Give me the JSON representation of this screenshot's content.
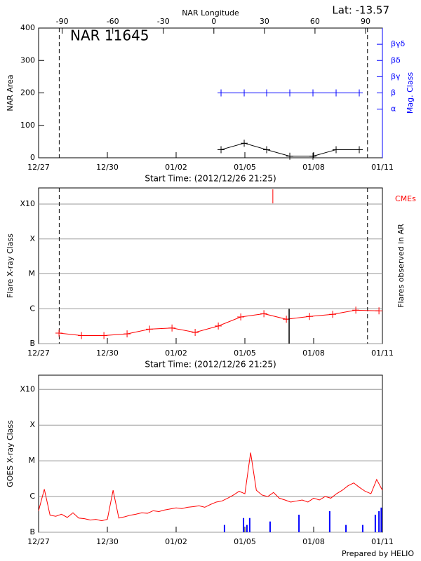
{
  "chart_data": [
    {
      "type": "line",
      "title": "NAR 11645",
      "annotation": "Lat: -13.57",
      "x_label": "Start Time: (2012/12/26 21:25)",
      "x2_label": "NAR Longitude",
      "y_label": "NAR Area",
      "y2_label": "Mag. Class",
      "y2_color": "#0000ff",
      "xlim": [
        0,
        15
      ],
      "xticks": [
        {
          "value": 0,
          "label": "12/27"
        },
        {
          "value": 3,
          "label": "12/30"
        },
        {
          "value": 6,
          "label": "01/02"
        },
        {
          "value": 9,
          "label": "01/05"
        },
        {
          "value": 12,
          "label": "01/08"
        },
        {
          "value": 15,
          "label": "01/11"
        }
      ],
      "x2lim": [
        -104,
        100
      ],
      "x2ticks": [
        -90,
        -60,
        -30,
        0,
        30,
        60,
        90
      ],
      "ylim": [
        0,
        400
      ],
      "yticks": [
        0,
        100,
        200,
        300,
        400
      ],
      "y2lim": [
        0,
        8
      ],
      "y2ticks": [
        {
          "value": 3,
          "label": "α"
        },
        {
          "value": 4,
          "label": "β"
        },
        {
          "value": 5,
          "label": "βγ"
        },
        {
          "value": 6,
          "label": "βδ"
        },
        {
          "value": 7,
          "label": "βγδ"
        }
      ],
      "grid": false,
      "limb_lines": [
        0.9,
        14.35
      ],
      "x": [
        7.96,
        8.97,
        9.95,
        10.96,
        11.97,
        12.98,
        13.99
      ],
      "series": [
        {
          "color": "#000000",
          "marker": "plus",
          "values": [
            25,
            45,
            25,
            5,
            5,
            25,
            25
          ]
        },
        {
          "color": "#0000ff",
          "marker": "plus",
          "axis": "y2",
          "values": [
            4,
            4,
            4,
            4,
            4,
            4,
            4
          ]
        }
      ]
    },
    {
      "type": "line",
      "x_label": "Start Time: (2012/12/26 21:25)",
      "y_label": "Flare X-ray Class",
      "y2_label": "Flares observed in AR",
      "y2_color": "#000000",
      "xlim": [
        0,
        15
      ],
      "xticks": [
        {
          "value": 0,
          "label": "12/27"
        },
        {
          "value": 3,
          "label": "12/30"
        },
        {
          "value": 6,
          "label": "01/02"
        },
        {
          "value": 9,
          "label": "01/05"
        },
        {
          "value": 12,
          "label": "01/08"
        },
        {
          "value": 15,
          "label": "01/11"
        }
      ],
      "log_y": true,
      "ylim": [
        1e-07,
        0.0029
      ],
      "yticks": [
        {
          "value": 1e-07,
          "label": "B"
        },
        {
          "value": 1e-06,
          "label": "C"
        },
        {
          "value": 1e-05,
          "label": "M"
        },
        {
          "value": 0.0001,
          "label": "X"
        },
        {
          "value": 0.001,
          "label": "X10"
        }
      ],
      "grid": true,
      "limb_lines": [
        0.9,
        14.35
      ],
      "x": [
        0.89,
        1.87,
        2.85,
        3.86,
        4.84,
        5.82,
        6.83,
        7.84,
        8.82,
        9.83,
        10.81,
        11.82,
        12.83,
        13.84,
        14.85
      ],
      "series": [
        {
          "color": "#ff0000",
          "marker": "plus",
          "values": [
            2e-07,
            1.7e-07,
            1.7e-07,
            1.9e-07,
            2.6e-07,
            2.8e-07,
            2.1e-07,
            3.2e-07,
            5.8e-07,
            7.2e-07,
            5e-07,
            6e-07,
            6.9e-07,
            9.1e-07,
            8.7e-07
          ]
        }
      ],
      "flares": {
        "color": "#000000",
        "x": [
          10.93
        ],
        "values": [
          1e-06
        ]
      },
      "cmes": {
        "color": "#ff0000",
        "label": "CMEs",
        "x": [
          10.22
        ]
      }
    },
    {
      "type": "line",
      "y_label": "GOES X-ray Class",
      "xlim": [
        0,
        15
      ],
      "xticks": [
        {
          "value": 0,
          "label": "12/27"
        },
        {
          "value": 3,
          "label": "12/30"
        },
        {
          "value": 6,
          "label": "01/02"
        },
        {
          "value": 9,
          "label": "01/05"
        },
        {
          "value": 12,
          "label": "01/08"
        },
        {
          "value": 15,
          "label": "01/11"
        }
      ],
      "log_y": true,
      "ylim": [
        1e-07,
        0.0025
      ],
      "yticks": [
        {
          "value": 1e-07,
          "label": "B"
        },
        {
          "value": 1e-06,
          "label": "C"
        },
        {
          "value": 1e-05,
          "label": "M"
        },
        {
          "value": 0.0001,
          "label": "X"
        },
        {
          "value": 0.001,
          "label": "X10"
        }
      ],
      "grid": true,
      "x": [
        0,
        0.25,
        0.5,
        0.75,
        1,
        1.25,
        1.5,
        1.75,
        2,
        2.25,
        2.5,
        2.75,
        3,
        3.25,
        3.5,
        3.75,
        4,
        4.25,
        4.5,
        4.75,
        5,
        5.25,
        5.5,
        5.75,
        6,
        6.25,
        6.5,
        6.75,
        7,
        7.25,
        7.5,
        7.75,
        8,
        8.25,
        8.5,
        8.75,
        9,
        9.25,
        9.5,
        9.75,
        10,
        10.25,
        10.5,
        10.75,
        11,
        11.25,
        11.5,
        11.75,
        12,
        12.25,
        12.5,
        12.75,
        13,
        13.25,
        13.5,
        13.75,
        14,
        14.25,
        14.5,
        14.75,
        15
      ],
      "series": [
        {
          "color": "#ff0000",
          "values": [
            4e-07,
            1.6e-06,
            3e-07,
            2.8e-07,
            3.2e-07,
            2.6e-07,
            3.5e-07,
            2.5e-07,
            2.4e-07,
            2.2e-07,
            2.3e-07,
            2.1e-07,
            2.3e-07,
            1.5e-06,
            2.5e-07,
            2.7e-07,
            3e-07,
            3.2e-07,
            3.5e-07,
            3.4e-07,
            4e-07,
            3.8e-07,
            4.2e-07,
            4.5e-07,
            4.8e-07,
            4.6e-07,
            5e-07,
            5.2e-07,
            5.5e-07,
            5e-07,
            6e-07,
            7e-07,
            7.5e-07,
            9e-07,
            1.1e-06,
            1.4e-06,
            1.2e-06,
            1.7e-05,
            1.5e-06,
            1.1e-06,
            1e-06,
            1.3e-06,
            9e-07,
            8e-07,
            7e-07,
            7.5e-07,
            8e-07,
            7e-07,
            9e-07,
            8e-07,
            1e-06,
            9e-07,
            1.2e-06,
            1.5e-06,
            2e-06,
            2.4e-06,
            1.8e-06,
            1.4e-06,
            1.2e-06,
            3e-06,
            1.5e-06
          ]
        }
      ],
      "bars": {
        "color": "#0000ff",
        "x": [
          8.11,
          8.94,
          9.09,
          9.21,
          10.1,
          11.36,
          12.7,
          13.41,
          14.14,
          14.69,
          14.85,
          14.95
        ],
        "values": [
          1.6e-07,
          2.5e-07,
          1.6e-07,
          2.5e-07,
          2e-07,
          3.1e-07,
          3.9e-07,
          1.6e-07,
          1.6e-07,
          3.1e-07,
          3.9e-07,
          4.9e-07
        ]
      }
    }
  ],
  "footer": "Prepared by HELIO"
}
